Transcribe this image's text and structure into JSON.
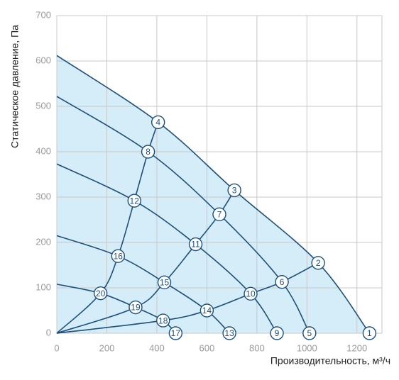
{
  "chart_data": {
    "type": "line",
    "x_label": "Производительность, м³/ч",
    "y_label": "Статическое давление, Па",
    "xlim": [
      0,
      1300
    ],
    "xticks": [
      0,
      200,
      400,
      600,
      800,
      1000,
      1200
    ],
    "ylim": [
      0,
      700
    ],
    "yticks": [
      0,
      100,
      200,
      300,
      400,
      500,
      600,
      700
    ],
    "grid": true,
    "fill_color": "#d5edf9",
    "series": [
      {
        "color": "#1d4f7c",
        "x": [
          0,
          405,
          710,
          1045,
          1250
        ],
        "values": [
          612,
          465,
          315,
          155,
          0
        ]
      },
      {
        "color": "#1d4f7c",
        "x": [
          0,
          365,
          650,
          900,
          1010
        ],
        "values": [
          522,
          400,
          262,
          113,
          0
        ]
      },
      {
        "color": "#1d4f7c",
        "x": [
          0,
          310,
          555,
          775,
          880
        ],
        "values": [
          373,
          292,
          196,
          87,
          0
        ]
      },
      {
        "color": "#1d4f7c",
        "x": [
          0,
          245,
          430,
          600,
          690
        ],
        "values": [
          215,
          170,
          112,
          50,
          0
        ]
      },
      {
        "color": "#1d4f7c",
        "x": [
          0,
          175,
          315,
          425,
          475
        ],
        "values": [
          108,
          88,
          57,
          28,
          0
        ]
      },
      {
        "color": "#1d4f7c",
        "x": [
          0,
          175,
          245,
          310,
          365,
          405
        ],
        "values": [
          0,
          88,
          170,
          292,
          400,
          465
        ]
      },
      {
        "color": "#1d4f7c",
        "x": [
          0,
          315,
          430,
          555,
          650,
          710
        ],
        "values": [
          0,
          57,
          112,
          196,
          262,
          315
        ]
      },
      {
        "color": "#1d4f7c",
        "x": [
          0,
          425,
          600,
          775,
          900,
          1045
        ],
        "values": [
          0,
          28,
          50,
          87,
          113,
          155
        ]
      }
    ],
    "points": [
      {
        "label": "1",
        "x": 1250,
        "y": 0
      },
      {
        "label": "2",
        "x": 1045,
        "y": 155
      },
      {
        "label": "3",
        "x": 710,
        "y": 315
      },
      {
        "label": "4",
        "x": 405,
        "y": 465
      },
      {
        "label": "5",
        "x": 1010,
        "y": 0
      },
      {
        "label": "6",
        "x": 900,
        "y": 113
      },
      {
        "label": "7",
        "x": 650,
        "y": 262
      },
      {
        "label": "8",
        "x": 365,
        "y": 400
      },
      {
        "label": "9",
        "x": 880,
        "y": 0
      },
      {
        "label": "10",
        "x": 775,
        "y": 87
      },
      {
        "label": "11",
        "x": 555,
        "y": 196
      },
      {
        "label": "12",
        "x": 310,
        "y": 292
      },
      {
        "label": "13",
        "x": 690,
        "y": 0
      },
      {
        "label": "14",
        "x": 600,
        "y": 50
      },
      {
        "label": "15",
        "x": 430,
        "y": 112
      },
      {
        "label": "16",
        "x": 245,
        "y": 170
      },
      {
        "label": "17",
        "x": 475,
        "y": 0
      },
      {
        "label": "18",
        "x": 425,
        "y": 28
      },
      {
        "label": "19",
        "x": 315,
        "y": 57
      },
      {
        "label": "20",
        "x": 175,
        "y": 88
      }
    ]
  }
}
